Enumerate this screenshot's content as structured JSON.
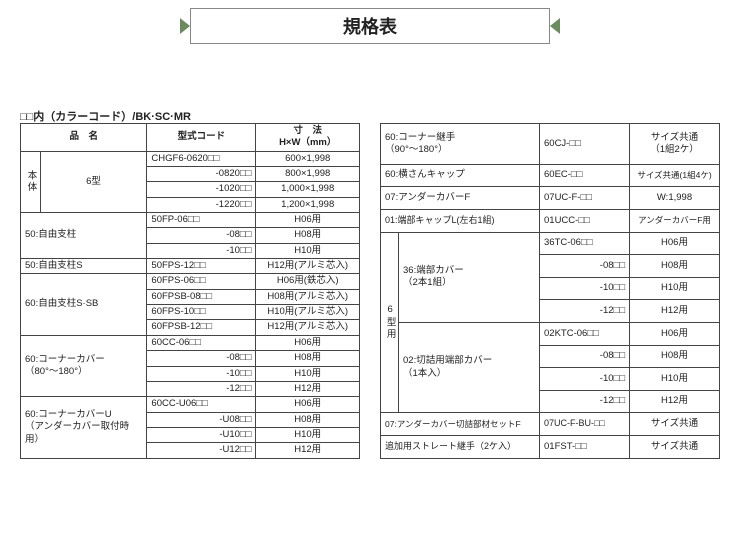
{
  "title": "規格表",
  "subtitle": "□□内（カラーコード）/BK·SC·MR",
  "h": {
    "name": "品　名",
    "code": "型式コード",
    "dim": "寸　法\nH×W（mm）"
  },
  "t1": {
    "body_label": "本体",
    "type6": "6型",
    "rows_body": [
      {
        "code": "CHGF6-0620□□",
        "dim": "600×1,998"
      },
      {
        "code": "-0820□□",
        "dim": "800×1,998"
      },
      {
        "code": "-1020□□",
        "dim": "1,000×1,998"
      },
      {
        "code": "-1220□□",
        "dim": "1,200×1,998"
      }
    ],
    "g50a": {
      "name": "50:自由支柱",
      "rows": [
        {
          "code": "50FP-06□□",
          "dim": "H06用"
        },
        {
          "code": "-08□□",
          "dim": "H08用"
        },
        {
          "code": "-10□□",
          "dim": "H10用"
        }
      ]
    },
    "g50s": {
      "name": "50:自由支柱S",
      "rows": [
        {
          "code": "50FPS-12□□",
          "dim": "H12用(アルミ芯入)"
        }
      ]
    },
    "g60s": {
      "name": "60:自由支柱S·SB",
      "rows": [
        {
          "code": "60FPS-06□□",
          "dim": "H06用(鉄芯入)"
        },
        {
          "code": "60FPSB-08□□",
          "dim": "H08用(アルミ芯入)"
        },
        {
          "code": "60FPS-10□□",
          "dim": "H10用(アルミ芯入)"
        },
        {
          "code": "60FPSB-12□□",
          "dim": "H12用(アルミ芯入)"
        }
      ]
    },
    "gcc": {
      "name": "60:コーナーカバー\n（80°～180°）",
      "rows": [
        {
          "code": "60CC-06□□",
          "dim": "H06用"
        },
        {
          "code": "-08□□",
          "dim": "H08用"
        },
        {
          "code": "-10□□",
          "dim": "H10用"
        },
        {
          "code": "-12□□",
          "dim": "H12用"
        }
      ]
    },
    "gccu": {
      "name": "60:コーナーカバーU\n（アンダーカバー取付時用）",
      "rows": [
        {
          "code": "60CC-U06□□",
          "dim": "H06用"
        },
        {
          "code": "-U08□□",
          "dim": "H08用"
        },
        {
          "code": "-U10□□",
          "dim": "H10用"
        },
        {
          "code": "-U12□□",
          "dim": "H12用"
        }
      ]
    }
  },
  "t2": {
    "r1": {
      "name": "60:コーナー継手\n（90°～180°）",
      "code": "60CJ-□□",
      "dim": "サイズ共通\n（1組2ケ）"
    },
    "r2": {
      "name": "60:横さんキャップ",
      "code": "60EC-□□",
      "dim": "サイズ共通(1組4ケ)"
    },
    "r3": {
      "name": "07:アンダーカバーF",
      "code": "07UC-F-□□",
      "dim": "W:1,998"
    },
    "r4": {
      "name": "01:端部キャップL(左右1組)",
      "code": "01UCC-□□",
      "dim": "アンダーカバーF用"
    },
    "type6_label": "6型用",
    "g36": {
      "name": "36:端部カバー\n（2本1組）",
      "rows": [
        {
          "code": "36TC-06□□",
          "dim": "H06用"
        },
        {
          "code": "-08□□",
          "dim": "H08用"
        },
        {
          "code": "-10□□",
          "dim": "H10用"
        },
        {
          "code": "-12□□",
          "dim": "H12用"
        }
      ]
    },
    "g02": {
      "name": "02:切詰用端部カバー\n（1本入）",
      "rows": [
        {
          "code": "02KTC-06□□",
          "dim": "H06用"
        },
        {
          "code": "-08□□",
          "dim": "H08用"
        },
        {
          "code": "-10□□",
          "dim": "H10用"
        },
        {
          "code": "-12□□",
          "dim": "H12用"
        }
      ]
    },
    "r5": {
      "name": "07:アンダーカバー切詰部材セットF",
      "code": "07UC-F-BU-□□",
      "dim": "サイズ共通"
    },
    "r6": {
      "name": "追加用ストレート継手（2ケ入）",
      "code": "01FST-□□",
      "dim": "サイズ共通"
    }
  }
}
